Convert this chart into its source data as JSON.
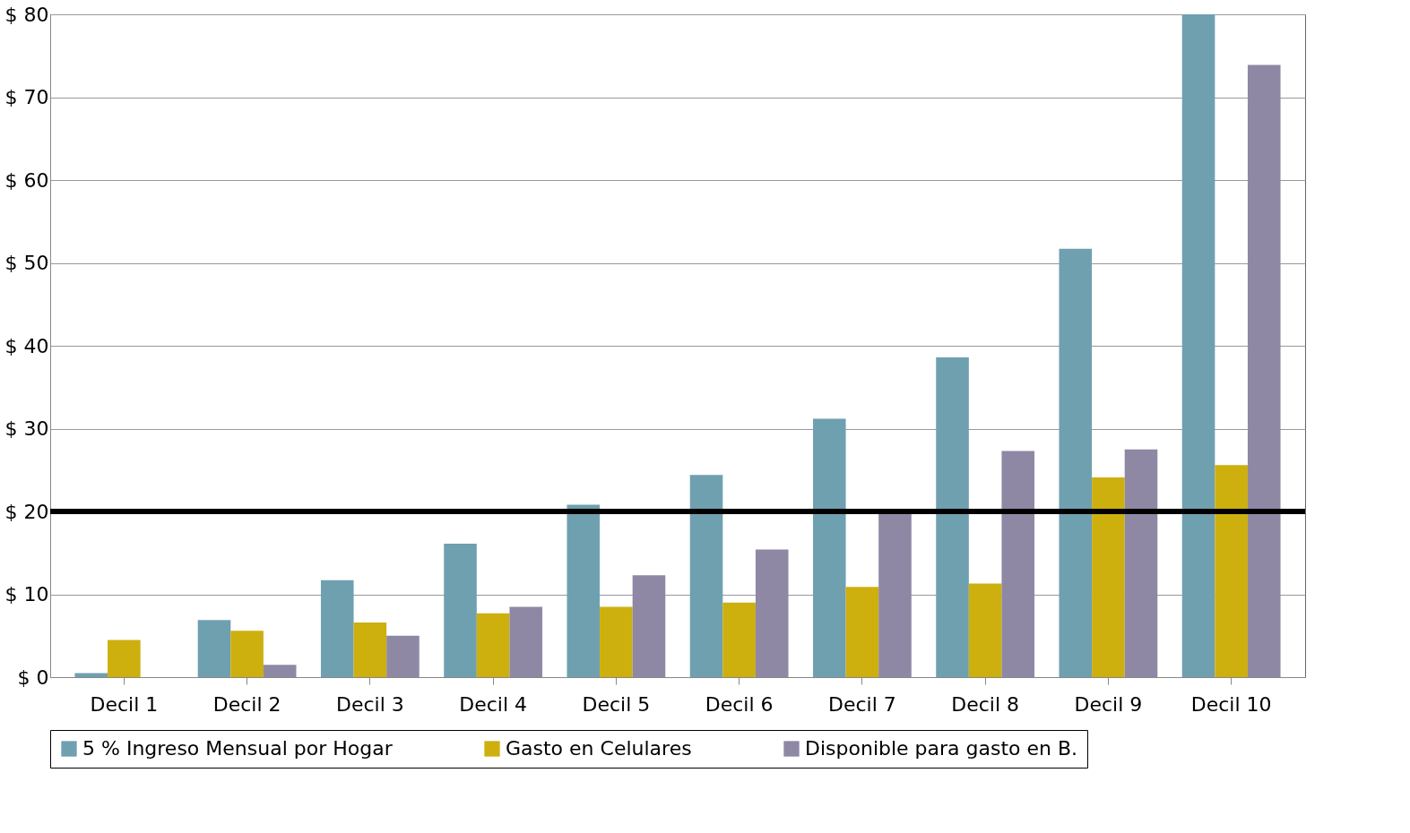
{
  "chart_data": {
    "type": "bar",
    "categories": [
      "Decil 1",
      "Decil 2",
      "Decil 3",
      "Decil 4",
      "Decil 5",
      "Decil 6",
      "Decil 7",
      "Decil 8",
      "Decil 9",
      "Decil 10"
    ],
    "series": [
      {
        "name": "5 % Ingreso Mensual por Hogar",
        "color": "#6fa0b0",
        "values": [
          0.5,
          6.9,
          11.7,
          16.1,
          20.8,
          24.4,
          31.2,
          38.6,
          51.7,
          80
        ]
      },
      {
        "name": "Gasto en Celulares",
        "color": "#cdaf0e",
        "values": [
          4.5,
          5.6,
          6.6,
          7.7,
          8.5,
          9.0,
          10.9,
          11.3,
          24.1,
          25.6
        ]
      },
      {
        "name": "Disponible para gasto en B.",
        "color": "#8e88a4",
        "values": [
          0,
          1.5,
          5.0,
          8.5,
          12.3,
          15.4,
          20,
          27.3,
          27.5,
          73.9
        ]
      }
    ],
    "ylim": [
      0,
      80
    ],
    "yticks": [
      {
        "value": 0,
        "label": "$ 0"
      },
      {
        "value": 10,
        "label": "$ 10"
      },
      {
        "value": 20,
        "label": "$ 20"
      },
      {
        "value": 30,
        "label": "$ 30"
      },
      {
        "value": 40,
        "label": "$ 40"
      },
      {
        "value": 50,
        "label": "$ 50"
      },
      {
        "value": 60,
        "label": "$ 60"
      },
      {
        "value": 70,
        "label": "$ 70"
      },
      {
        "value": 80,
        "label": "$ 80"
      }
    ],
    "ref_lines": [
      {
        "axis": "y",
        "value": 20,
        "color": "#000000"
      }
    ],
    "grid": "y",
    "legend": "bottom"
  }
}
